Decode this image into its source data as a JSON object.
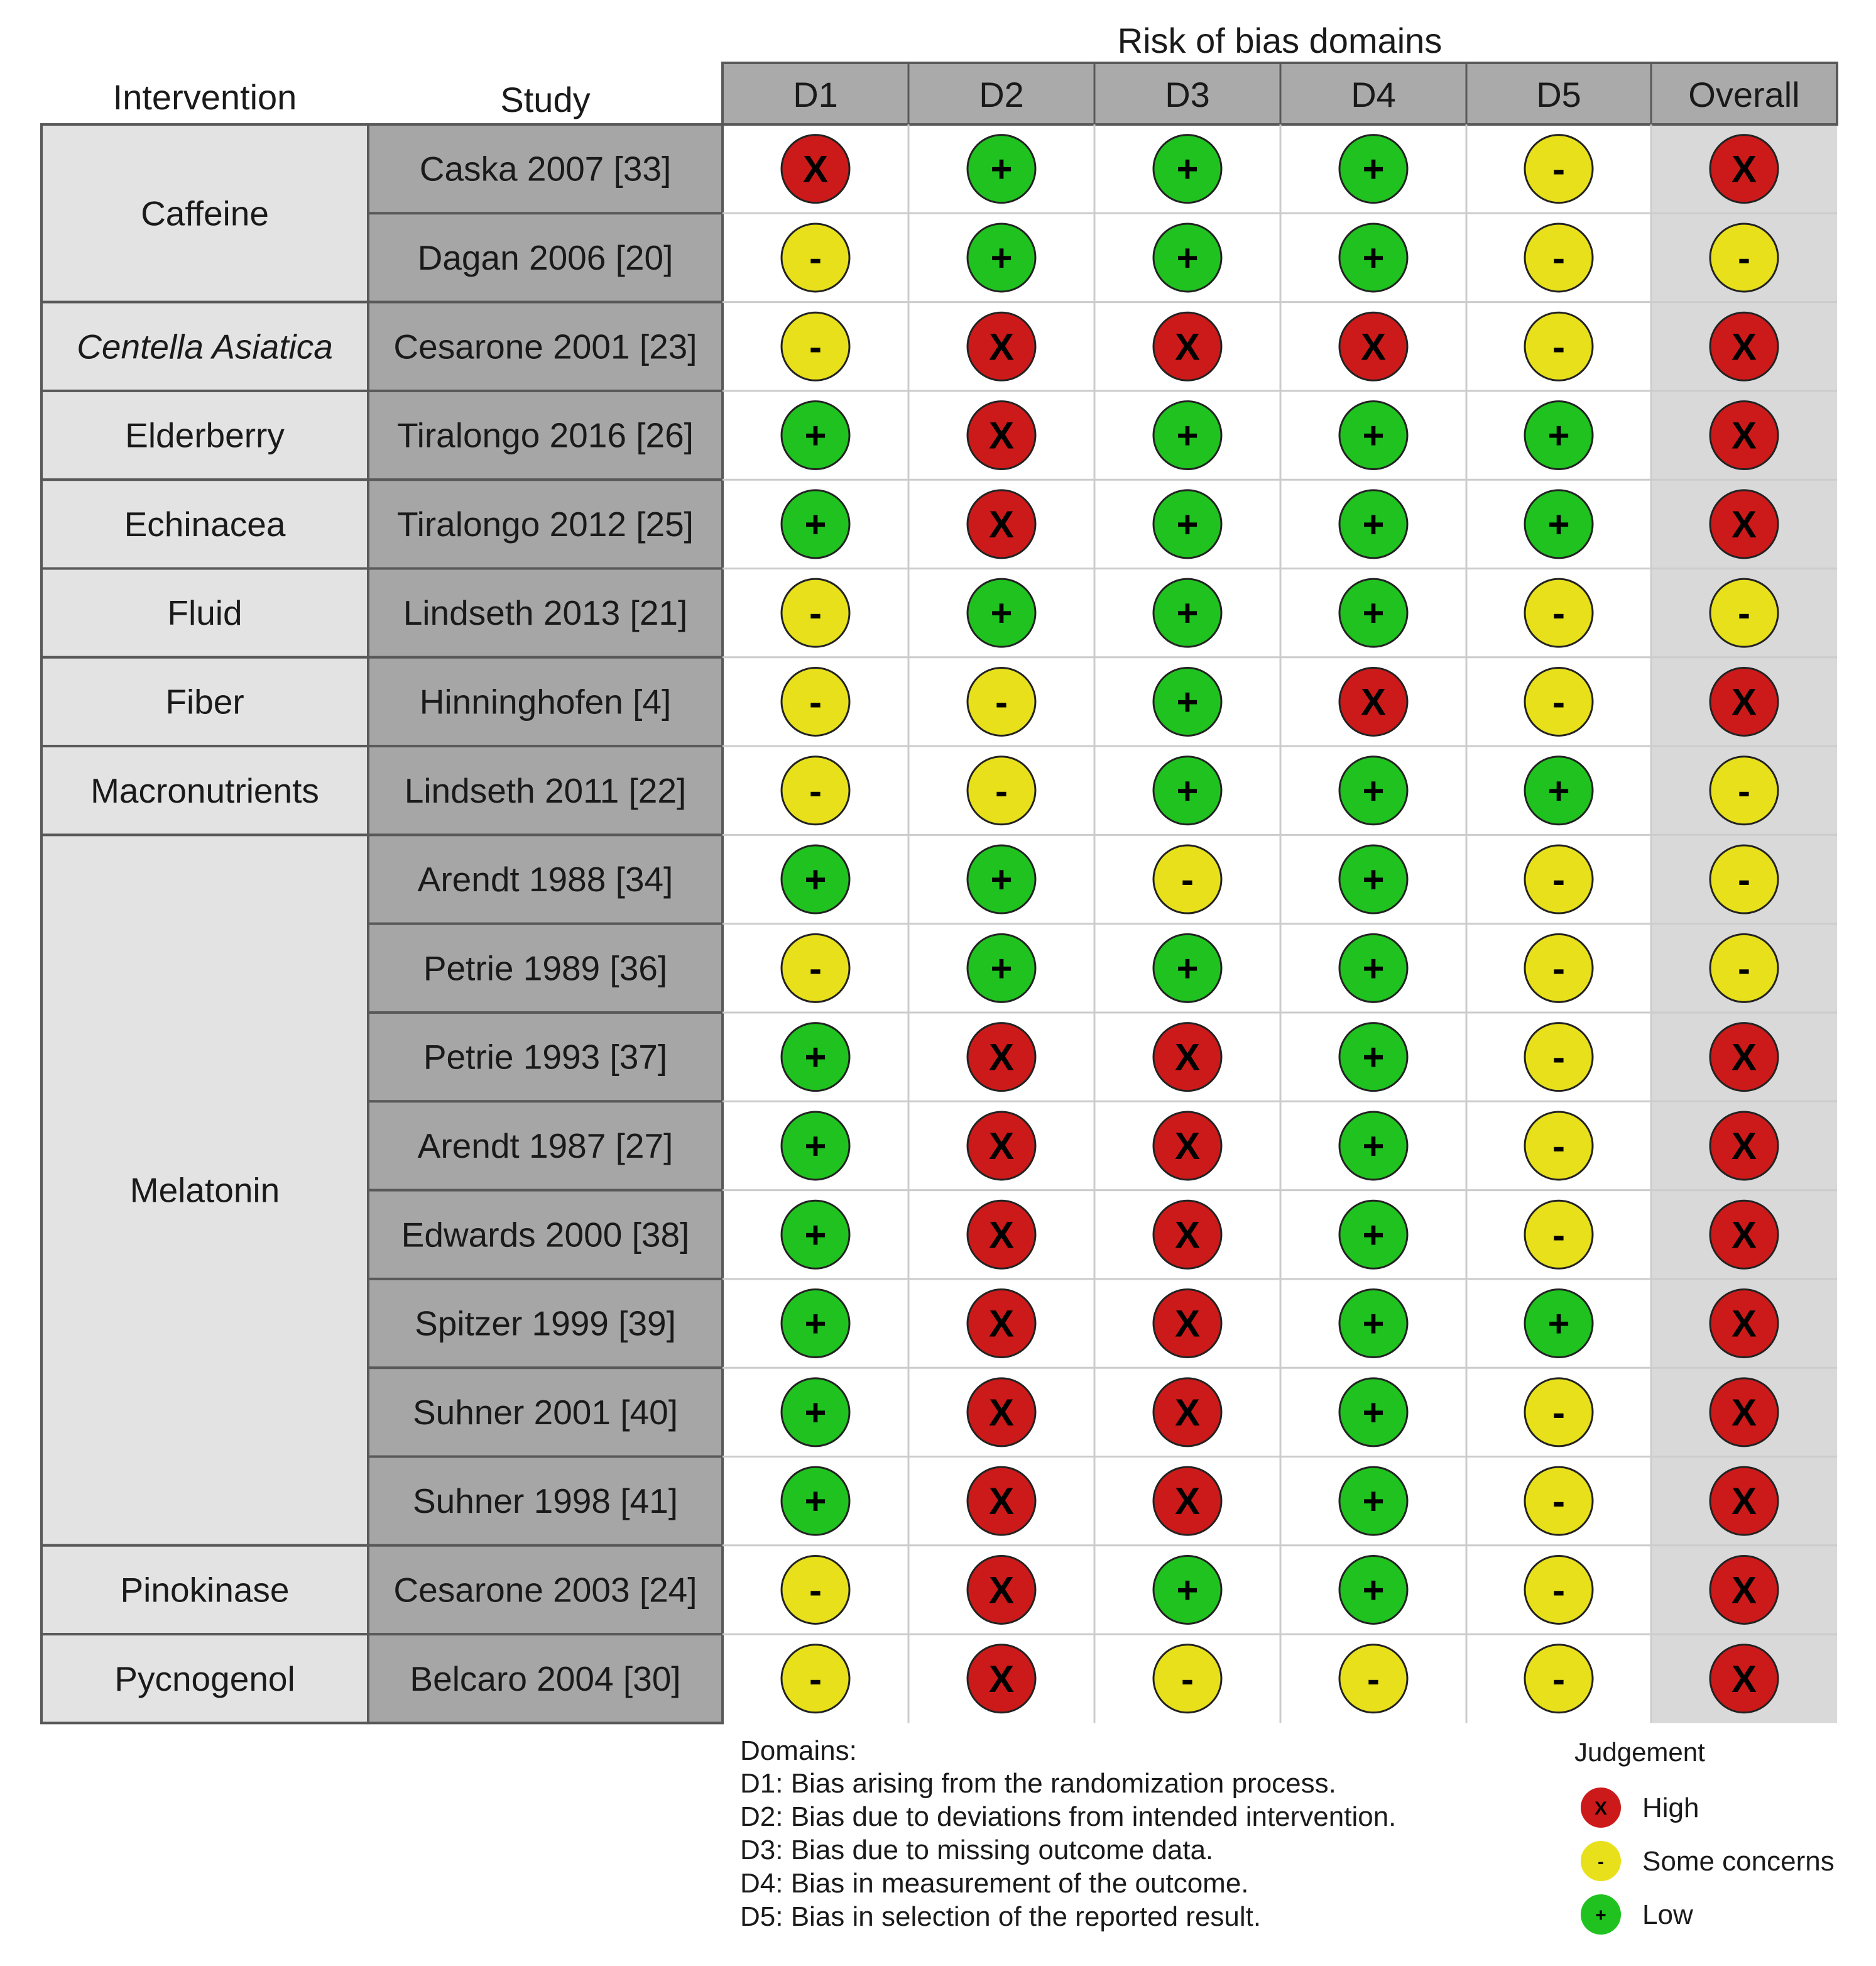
{
  "chart_data": {
    "type": "table",
    "title": "Risk of bias domains",
    "column_headers": {
      "intervention": "Intervention",
      "study": "Study",
      "domains": [
        "D1",
        "D2",
        "D3",
        "D4",
        "D5",
        "Overall"
      ]
    },
    "symbols": {
      "high": "X",
      "some": "-",
      "low": "+"
    },
    "colors": {
      "high": "#cc1a1a",
      "some": "#e8e01b",
      "low": "#1fc21f"
    },
    "groups": [
      {
        "name": "Caffeine",
        "italic": false,
        "rows": 2
      },
      {
        "name": "Centella Asiatica",
        "italic": true,
        "rows": 1
      },
      {
        "name": "Elderberry",
        "italic": false,
        "rows": 1
      },
      {
        "name": "Echinacea",
        "italic": false,
        "rows": 1
      },
      {
        "name": "Fluid",
        "italic": false,
        "rows": 1
      },
      {
        "name": "Fiber",
        "italic": false,
        "rows": 1
      },
      {
        "name": "Macronutrients",
        "italic": false,
        "rows": 1
      },
      {
        "name": "Melatonin",
        "italic": false,
        "rows": 8
      },
      {
        "name": "Pinokinase",
        "italic": false,
        "rows": 1
      },
      {
        "name": "Pycnogenol",
        "italic": false,
        "rows": 1
      }
    ],
    "studies": [
      {
        "study": "Caska 2007 [33]",
        "judgements": [
          "high",
          "low",
          "low",
          "low",
          "some",
          "high"
        ]
      },
      {
        "study": "Dagan 2006 [20]",
        "judgements": [
          "some",
          "low",
          "low",
          "low",
          "some",
          "some"
        ]
      },
      {
        "study": "Cesarone 2001 [23]",
        "judgements": [
          "some",
          "high",
          "high",
          "high",
          "some",
          "high"
        ]
      },
      {
        "study": "Tiralongo 2016 [26]",
        "judgements": [
          "low",
          "high",
          "low",
          "low",
          "low",
          "high"
        ]
      },
      {
        "study": "Tiralongo 2012 [25]",
        "judgements": [
          "low",
          "high",
          "low",
          "low",
          "low",
          "high"
        ]
      },
      {
        "study": "Lindseth 2013 [21]",
        "judgements": [
          "some",
          "low",
          "low",
          "low",
          "some",
          "some"
        ]
      },
      {
        "study": "Hinninghofen [4]",
        "judgements": [
          "some",
          "some",
          "low",
          "high",
          "some",
          "high"
        ]
      },
      {
        "study": "Lindseth 2011 [22]",
        "judgements": [
          "some",
          "some",
          "low",
          "low",
          "low",
          "some"
        ]
      },
      {
        "study": "Arendt 1988 [34]",
        "judgements": [
          "low",
          "low",
          "some",
          "low",
          "some",
          "some"
        ]
      },
      {
        "study": "Petrie 1989 [36]",
        "judgements": [
          "some",
          "low",
          "low",
          "low",
          "some",
          "some"
        ]
      },
      {
        "study": "Petrie 1993 [37]",
        "judgements": [
          "low",
          "high",
          "high",
          "low",
          "some",
          "high"
        ]
      },
      {
        "study": "Arendt 1987 [27]",
        "judgements": [
          "low",
          "high",
          "high",
          "low",
          "some",
          "high"
        ]
      },
      {
        "study": "Edwards 2000 [38]",
        "judgements": [
          "low",
          "high",
          "high",
          "low",
          "some",
          "high"
        ]
      },
      {
        "study": "Spitzer 1999 [39]",
        "judgements": [
          "low",
          "high",
          "high",
          "low",
          "low",
          "high"
        ]
      },
      {
        "study": "Suhner 2001 [40]",
        "judgements": [
          "low",
          "high",
          "high",
          "low",
          "some",
          "high"
        ]
      },
      {
        "study": "Suhner 1998 [41]",
        "judgements": [
          "low",
          "high",
          "high",
          "low",
          "some",
          "high"
        ]
      },
      {
        "study": "Cesarone 2003 [24]",
        "judgements": [
          "some",
          "high",
          "low",
          "low",
          "some",
          "high"
        ]
      },
      {
        "study": "Belcaro 2004 [30]",
        "judgements": [
          "some",
          "high",
          "some",
          "some",
          "some",
          "high"
        ]
      }
    ],
    "domains_legend": {
      "title": "Domains:",
      "items": [
        "D1: Bias arising from the randomization process.",
        "D2: Bias due to deviations from intended intervention.",
        "D3: Bias due to missing outcome data.",
        "D4: Bias in measurement of the outcome.",
        "D5: Bias in selection of the reported result."
      ]
    },
    "judgement_legend": {
      "title": "Judgement",
      "items": [
        {
          "key": "high",
          "label": "High"
        },
        {
          "key": "some",
          "label": "Some concerns"
        },
        {
          "key": "low",
          "label": "Low"
        }
      ]
    }
  }
}
